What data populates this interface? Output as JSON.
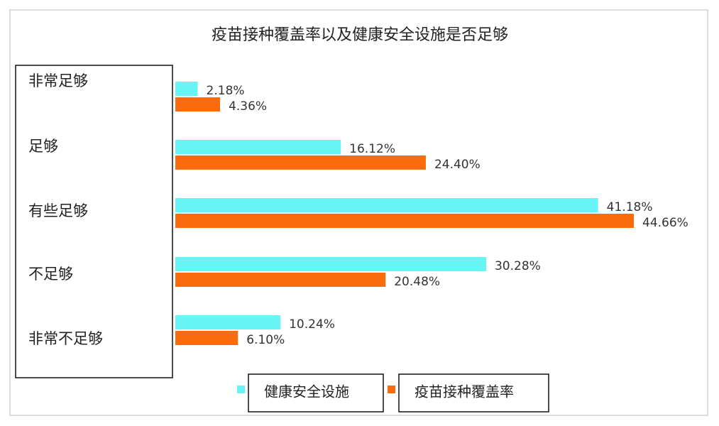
{
  "chart_data": {
    "type": "bar",
    "orientation": "horizontal",
    "title": "疫苗接种覆盖率以及健康安全设施是否足够",
    "categories": [
      "非常足够",
      "足够",
      "有些足够",
      "不足够",
      "非常不足够"
    ],
    "series": [
      {
        "name": "健康安全设施",
        "color": "#66f4f4",
        "values": [
          2.18,
          16.12,
          41.18,
          30.28,
          10.24
        ],
        "value_labels": [
          "2.18%",
          "16.12%",
          "41.18%",
          "30.28%",
          "10.24%"
        ]
      },
      {
        "name": "疫苗接种覆盖率",
        "color": "#f96b0c",
        "values": [
          4.36,
          24.4,
          44.66,
          20.48,
          6.1
        ],
        "value_labels": [
          "4.36%",
          "24.40%",
          "44.66%",
          "20.48%",
          "6.10%"
        ]
      }
    ]
  }
}
